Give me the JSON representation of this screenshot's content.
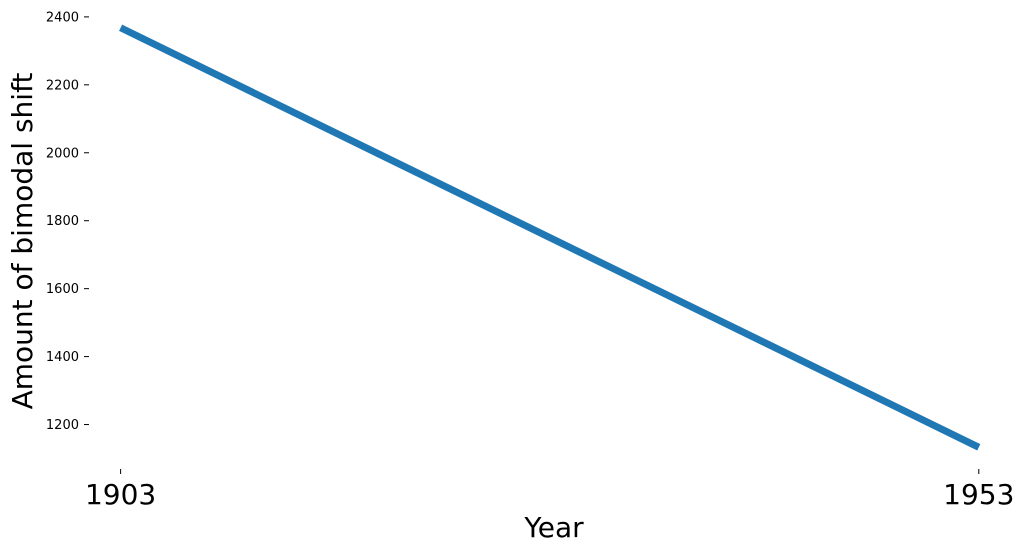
{
  "chart_data": {
    "type": "line",
    "title": "",
    "xlabel": "Year",
    "ylabel": "Amount of bimodal shift",
    "x": [
      1903,
      1953
    ],
    "x_ticks": [
      "1903",
      "1953"
    ],
    "y_ticks": [
      1200,
      1400,
      1600,
      1800,
      2000,
      2200,
      2400
    ],
    "xlim": [
      1901.1,
      1955.4
    ],
    "ylim": [
      1075,
      2435
    ],
    "grid": false,
    "legend": "none",
    "series": [
      {
        "color": "#1f77b4",
        "values": [
          2368,
          1133
        ]
      }
    ]
  }
}
